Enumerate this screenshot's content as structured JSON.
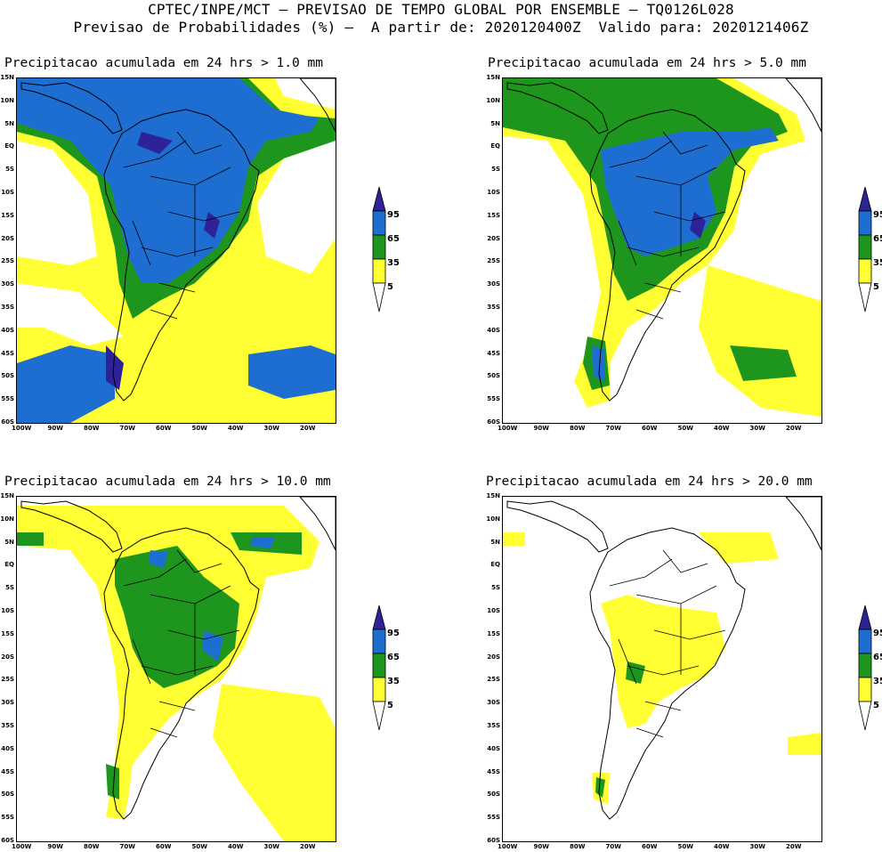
{
  "header": {
    "line1": "CPTEC/INPE/MCT — PREVISAO DE TEMPO GLOBAL POR ENSEMBLE — TQ0126L028",
    "line2": "Previsao de Probabilidades (%) —  A partir de: 2020120400Z  Valido para: 2020121406Z"
  },
  "panels": [
    {
      "title": "Precipitacao acumulada em 24 hrs > 1.0 mm"
    },
    {
      "title": "Precipitacao acumulada em 24 hrs > 5.0 mm"
    },
    {
      "title": "Precipitacao acumulada em 24 hrs > 10.0 mm"
    },
    {
      "title": "Precipitacao acumulada em 24 hrs > 20.0 mm"
    }
  ],
  "axes": {
    "lat_labels": [
      "15N",
      "10N",
      "5N",
      "EQ",
      "5S",
      "10S",
      "15S",
      "20S",
      "25S",
      "30S",
      "35S",
      "40S",
      "45S",
      "50S",
      "55S",
      "60S"
    ],
    "lon_labels": [
      "100W",
      "90W",
      "80W",
      "70W",
      "60W",
      "50W",
      "40W",
      "30W",
      "20W"
    ]
  },
  "legend": {
    "labels": [
      "95",
      "65",
      "35",
      "5"
    ],
    "colors": {
      "yellow": "#ffff33",
      "green": "#1e961e",
      "blue": "#1e6ed2",
      "darkblue": "#2d2396"
    }
  }
}
